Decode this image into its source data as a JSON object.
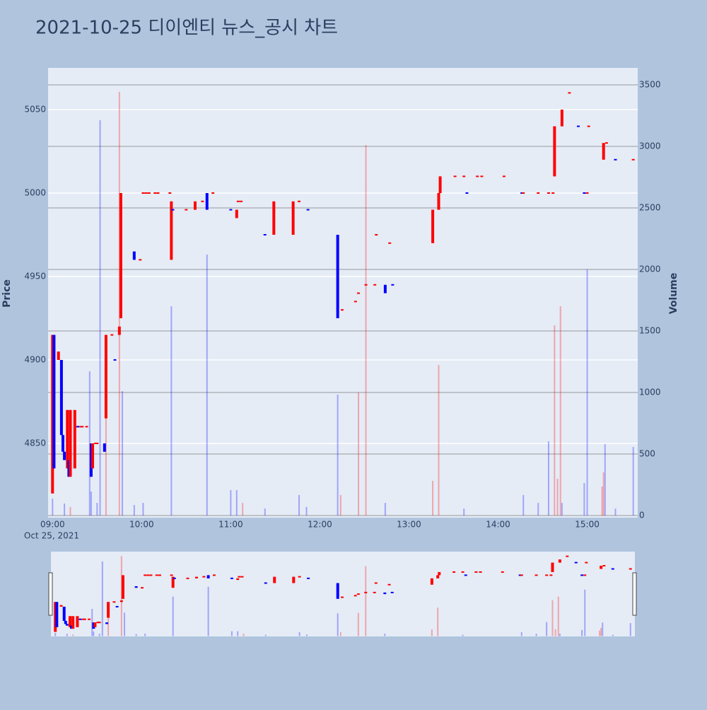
{
  "chart_data": {
    "type": "candlestick",
    "title": "2021-10-25 디이엔티 뉴스_공시 차트",
    "title_color": "#e8505b",
    "y_label": "Price",
    "y2_label": "Volume",
    "xaxis_date": "Oct 25, 2021",
    "increasing_color": "#ff0000",
    "decreasing_color": "#0000ff",
    "xlim": [
      "08:57",
      "15:34"
    ],
    "xticks": [
      "09:00",
      "10:00",
      "11:00",
      "12:00",
      "13:00",
      "14:00",
      "15:00"
    ],
    "ylim": [
      4805.5,
      5075
    ],
    "yticks": [
      4850,
      4900,
      4950,
      5000,
      5050
    ],
    "y2lim": [
      -17,
      3638
    ],
    "y2ticks": [
      0,
      500,
      1000,
      1500,
      2000,
      2500,
      3000,
      3500
    ],
    "grid": true,
    "x": [
      "09:00",
      "09:01",
      "09:04",
      "09:06",
      "09:07",
      "09:08",
      "09:10",
      "09:11",
      "09:12",
      "09:15",
      "09:17",
      "09:19",
      "09:20",
      "09:23",
      "09:26",
      "09:27",
      "09:29",
      "09:30",
      "09:35",
      "09:36",
      "09:40",
      "09:42",
      "09:45",
      "09:46",
      "09:55",
      "09:59",
      "10:01",
      "10:03",
      "10:05",
      "10:09",
      "10:11",
      "10:19",
      "10:20",
      "10:21",
      "10:30",
      "10:36",
      "10:41",
      "10:44",
      "10:48",
      "11:00",
      "11:04",
      "11:05",
      "11:07",
      "11:23",
      "11:29",
      "11:42",
      "11:46",
      "11:52",
      "12:12",
      "12:15",
      "12:24",
      "12:26",
      "12:31",
      "12:37",
      "12:38",
      "12:44",
      "12:47",
      "12:49",
      "13:16",
      "13:20",
      "13:21",
      "13:31",
      "13:37",
      "13:39",
      "13:46",
      "13:49",
      "14:04",
      "14:16",
      "14:17",
      "14:27",
      "14:34",
      "14:37",
      "14:38",
      "14:43",
      "14:48",
      "14:54",
      "14:58",
      "15:00",
      "15:01",
      "15:11",
      "15:13",
      "15:19",
      "15:31"
    ],
    "open": [
      4820,
      4915,
      4900,
      4900,
      4855,
      4845,
      4835,
      4840,
      4830,
      4835,
      4860,
      4860,
      4860,
      4860,
      4850,
      4835,
      4850,
      4850,
      4850,
      4865,
      4915,
      4900,
      4915,
      4925,
      4965,
      4960,
      5000,
      5000,
      5000,
      5000,
      5000,
      5000,
      4960,
      4990,
      4990,
      4990,
      4995,
      5000,
      5000,
      4990,
      4985,
      4995,
      4995,
      4975,
      4975,
      4975,
      4995,
      4990,
      4975,
      4930,
      4935,
      4940,
      4945,
      4945,
      4975,
      4945,
      4970,
      4945,
      4970,
      4990,
      5000,
      5010,
      5010,
      5000,
      5010,
      5010,
      5010,
      5000,
      5000,
      5000,
      5000,
      5000,
      5010,
      5040,
      5060,
      5040,
      5000,
      5000,
      5040,
      5020,
      5030,
      5020,
      5020
    ],
    "high": [
      4915,
      4915,
      4905,
      4900,
      4855,
      4845,
      4870,
      4840,
      4870,
      4870,
      4860,
      4860,
      4860,
      4860,
      4850,
      4850,
      4850,
      4850,
      4850,
      4915,
      4915,
      4900,
      4920,
      5000,
      4965,
      4960,
      5000,
      5000,
      5000,
      5000,
      5000,
      5000,
      4995,
      4990,
      4990,
      4995,
      4995,
      5000,
      5000,
      4990,
      4990,
      4995,
      4995,
      4975,
      4995,
      4995,
      4995,
      4990,
      4975,
      4930,
      4935,
      4940,
      4945,
      4945,
      4975,
      4945,
      4970,
      4945,
      4990,
      5000,
      5010,
      5010,
      5010,
      5000,
      5010,
      5010,
      5010,
      5000,
      5000,
      5000,
      5000,
      5000,
      5040,
      5050,
      5060,
      5040,
      5000,
      5000,
      5040,
      5030,
      5030,
      5020,
      5020
    ],
    "low": [
      4820,
      4835,
      4900,
      4855,
      4845,
      4840,
      4835,
      4830,
      4830,
      4835,
      4860,
      4860,
      4860,
      4860,
      4830,
      4835,
      4850,
      4850,
      4845,
      4865,
      4915,
      4900,
      4915,
      4925,
      4960,
      4960,
      5000,
      5000,
      5000,
      5000,
      5000,
      5000,
      4960,
      4990,
      4990,
      4990,
      4995,
      4990,
      5000,
      4990,
      4985,
      4995,
      4995,
      4975,
      4975,
      4975,
      4995,
      4990,
      4925,
      4930,
      4935,
      4940,
      4945,
      4945,
      4975,
      4940,
      4970,
      4945,
      4970,
      4990,
      5000,
      5010,
      5010,
      5000,
      5010,
      5010,
      5010,
      5000,
      5000,
      5000,
      5000,
      5000,
      5010,
      5040,
      5060,
      5040,
      5000,
      5000,
      5040,
      5020,
      5030,
      5020,
      5020
    ],
    "close": [
      4915,
      4835,
      4905,
      4855,
      4845,
      4840,
      4870,
      4830,
      4870,
      4870,
      4860,
      4860,
      4860,
      4860,
      4830,
      4850,
      4850,
      4850,
      4845,
      4915,
      4915,
      4900,
      4920,
      5000,
      4960,
      4960,
      5000,
      5000,
      5000,
      5000,
      5000,
      5000,
      4995,
      4990,
      4990,
      4995,
      4995,
      4990,
      5000,
      4990,
      4990,
      4995,
      4995,
      4975,
      4995,
      4995,
      4995,
      4990,
      4925,
      4930,
      4935,
      4940,
      4945,
      4945,
      4975,
      4940,
      4970,
      4945,
      4990,
      5000,
      5010,
      5010,
      5010,
      5000,
      5010,
      5010,
      5010,
      5000,
      5000,
      5000,
      5000,
      5000,
      5040,
      5050,
      5060,
      5040,
      5000,
      5000,
      5040,
      5030,
      5030,
      5020,
      5020
    ],
    "volume": {
      "axis": "y2",
      "x": [
        "09:00",
        "09:08",
        "09:12",
        "09:25",
        "09:26",
        "09:30",
        "09:32",
        "09:36",
        "09:45",
        "09:47",
        "09:55",
        "10:01",
        "10:20",
        "10:44",
        "11:00",
        "11:04",
        "11:08",
        "11:23",
        "11:46",
        "11:51",
        "12:12",
        "12:14",
        "12:26",
        "12:31",
        "12:44",
        "13:16",
        "13:20",
        "13:37",
        "14:17",
        "14:27",
        "14:34",
        "14:38",
        "14:40",
        "14:42",
        "14:43",
        "14:58",
        "15:00",
        "15:10",
        "15:11",
        "15:12",
        "15:19",
        "15:31"
      ],
      "values": [
        138,
        98,
        70,
        1172,
        195,
        103,
        3213,
        1000,
        3443,
        1011,
        86,
        103,
        1701,
        2121,
        207,
        207,
        103,
        57,
        167,
        70,
        983,
        167,
        1000,
        3011,
        103,
        282,
        1224,
        57,
        167,
        103,
        603,
        1546,
        299,
        1701,
        103,
        264,
        2000,
        236,
        351,
        580,
        57,
        557
      ],
      "colors": [
        "#0000ff",
        "#0000ff",
        "#ff0000",
        "#0000ff",
        "#0000ff",
        "#0000ff",
        "#0000ff",
        "#ff0000",
        "#ff0000",
        "#0000ff",
        "#0000ff",
        "#0000ff",
        "#0000ff",
        "#0000ff",
        "#0000ff",
        "#0000ff",
        "#ff0000",
        "#0000ff",
        "#0000ff",
        "#0000ff",
        "#0000ff",
        "#ff0000",
        "#ff0000",
        "#ff0000",
        "#0000ff",
        "#ff0000",
        "#ff0000",
        "#0000ff",
        "#0000ff",
        "#0000ff",
        "#0000ff",
        "#ff0000",
        "#ff0000",
        "#ff0000",
        "#0000ff",
        "#0000ff",
        "#0000ff",
        "#ff0000",
        "#ff0000",
        "#0000ff",
        "#0000ff",
        "#0000ff"
      ]
    }
  }
}
